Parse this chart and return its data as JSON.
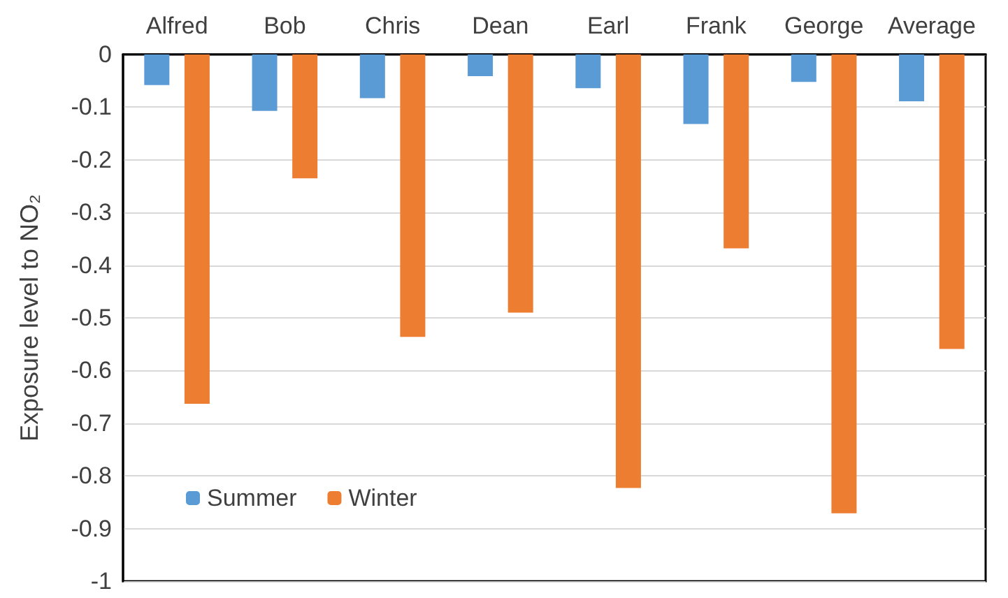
{
  "chart_data": {
    "type": "bar",
    "ylabel": "Exposure level to NO₂",
    "categories": [
      "Alfred",
      "Bob",
      "Chris",
      "Dean",
      "Earl",
      "Frank",
      "George",
      "Average"
    ],
    "series": [
      {
        "name": "Summer",
        "color": "#5b9bd5",
        "values": [
          -0.058,
          -0.107,
          -0.083,
          -0.041,
          -0.064,
          -0.132,
          -0.052,
          -0.089
        ]
      },
      {
        "name": "Winter",
        "color": "#ed7d31",
        "values": [
          -0.663,
          -0.235,
          -0.536,
          -0.49,
          -0.823,
          -0.368,
          -0.871,
          -0.559
        ]
      }
    ],
    "ylim": [
      -1,
      0
    ],
    "yticks": [
      -1,
      -0.9,
      -0.8,
      -0.7,
      -0.6,
      -0.5,
      -0.4,
      -0.3,
      -0.2,
      -0.1,
      0
    ],
    "grid": "y",
    "legend": "bottom left"
  }
}
